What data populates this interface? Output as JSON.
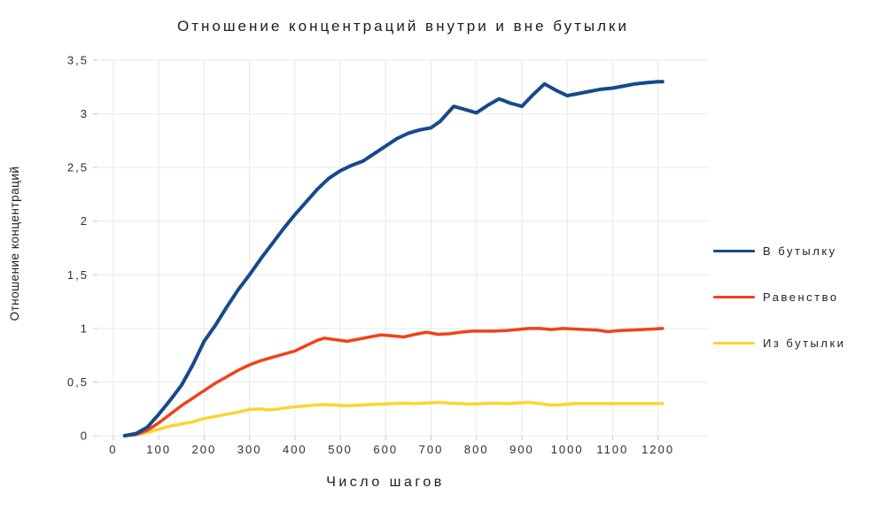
{
  "page": {
    "background": "#ffffff"
  },
  "chart_data": {
    "type": "line",
    "title": "Отношение концентраций внутри и вне бутылки",
    "xlabel": "Число шагов",
    "ylabel": "Отношение концентраций",
    "grid": true,
    "legend_position": "right",
    "xlim": [
      -35,
      1312
    ],
    "ylim": [
      0,
      3.5
    ],
    "x_ticks": {
      "values": [
        0,
        100,
        200,
        300,
        400,
        500,
        600,
        700,
        800,
        900,
        1000,
        1100,
        1200
      ],
      "labels": [
        "0",
        "100",
        "200",
        "300",
        "400",
        "500",
        "600",
        "700",
        "800",
        "900",
        "1000",
        "1100",
        "1200"
      ]
    },
    "y_ticks": {
      "values": [
        0,
        0.5,
        1,
        1.5,
        2,
        2.5,
        3,
        3.5
      ],
      "labels": [
        "0",
        "0,5",
        "1",
        "1,5",
        "2",
        "2,5",
        "3",
        "3,5"
      ]
    },
    "colors": {
      "grid": "#e9e9e9",
      "tick": "#c9c9c9",
      "tick_text": "#2e2e2e"
    },
    "series": [
      {
        "name": "В бутылку",
        "color": "#17498c",
        "width": 4,
        "points": [
          [
            25,
            0
          ],
          [
            50,
            0.02
          ],
          [
            75,
            0.08
          ],
          [
            100,
            0.2
          ],
          [
            125,
            0.33
          ],
          [
            150,
            0.47
          ],
          [
            175,
            0.66
          ],
          [
            200,
            0.88
          ],
          [
            225,
            1.03
          ],
          [
            250,
            1.2
          ],
          [
            275,
            1.36
          ],
          [
            300,
            1.5
          ],
          [
            325,
            1.65
          ],
          [
            350,
            1.79
          ],
          [
            375,
            1.93
          ],
          [
            400,
            2.06
          ],
          [
            425,
            2.18
          ],
          [
            450,
            2.3
          ],
          [
            475,
            2.4
          ],
          [
            500,
            2.47
          ],
          [
            525,
            2.52
          ],
          [
            550,
            2.56
          ],
          [
            575,
            2.63
          ],
          [
            600,
            2.7
          ],
          [
            625,
            2.77
          ],
          [
            650,
            2.82
          ],
          [
            675,
            2.85
          ],
          [
            700,
            2.87
          ],
          [
            720,
            2.93
          ],
          [
            750,
            3.07
          ],
          [
            775,
            3.04
          ],
          [
            800,
            3.01
          ],
          [
            825,
            3.08
          ],
          [
            850,
            3.14
          ],
          [
            875,
            3.1
          ],
          [
            900,
            3.07
          ],
          [
            925,
            3.18
          ],
          [
            950,
            3.28
          ],
          [
            975,
            3.22
          ],
          [
            1000,
            3.17
          ],
          [
            1025,
            3.19
          ],
          [
            1050,
            3.21
          ],
          [
            1075,
            3.23
          ],
          [
            1100,
            3.24
          ],
          [
            1125,
            3.26
          ],
          [
            1150,
            3.28
          ],
          [
            1175,
            3.29
          ],
          [
            1200,
            3.3
          ],
          [
            1210,
            3.3
          ]
        ]
      },
      {
        "name": "Равенство",
        "color": "#f0421a",
        "width": 3.5,
        "points": [
          [
            25,
            0
          ],
          [
            50,
            0.01
          ],
          [
            75,
            0.05
          ],
          [
            100,
            0.12
          ],
          [
            125,
            0.2
          ],
          [
            150,
            0.28
          ],
          [
            175,
            0.35
          ],
          [
            200,
            0.42
          ],
          [
            225,
            0.49
          ],
          [
            250,
            0.55
          ],
          [
            275,
            0.61
          ],
          [
            300,
            0.66
          ],
          [
            325,
            0.7
          ],
          [
            350,
            0.73
          ],
          [
            375,
            0.76
          ],
          [
            400,
            0.79
          ],
          [
            425,
            0.84
          ],
          [
            450,
            0.89
          ],
          [
            465,
            0.91
          ],
          [
            490,
            0.895
          ],
          [
            515,
            0.88
          ],
          [
            540,
            0.9
          ],
          [
            565,
            0.92
          ],
          [
            590,
            0.94
          ],
          [
            615,
            0.93
          ],
          [
            640,
            0.92
          ],
          [
            665,
            0.945
          ],
          [
            690,
            0.965
          ],
          [
            715,
            0.945
          ],
          [
            740,
            0.95
          ],
          [
            765,
            0.965
          ],
          [
            790,
            0.975
          ],
          [
            815,
            0.975
          ],
          [
            840,
            0.975
          ],
          [
            865,
            0.98
          ],
          [
            890,
            0.99
          ],
          [
            915,
            1.0
          ],
          [
            940,
            1.0
          ],
          [
            965,
            0.99
          ],
          [
            990,
            1.0
          ],
          [
            1015,
            0.995
          ],
          [
            1040,
            0.99
          ],
          [
            1065,
            0.985
          ],
          [
            1090,
            0.97
          ],
          [
            1115,
            0.98
          ],
          [
            1140,
            0.985
          ],
          [
            1165,
            0.99
          ],
          [
            1190,
            0.995
          ],
          [
            1210,
            1.0
          ]
        ]
      },
      {
        "name": "Из бутылки",
        "color": "#fed330",
        "width": 3.5,
        "points": [
          [
            25,
            0
          ],
          [
            50,
            0.01
          ],
          [
            75,
            0.03
          ],
          [
            100,
            0.06
          ],
          [
            125,
            0.09
          ],
          [
            150,
            0.11
          ],
          [
            175,
            0.13
          ],
          [
            200,
            0.16
          ],
          [
            225,
            0.18
          ],
          [
            250,
            0.2
          ],
          [
            275,
            0.22
          ],
          [
            300,
            0.245
          ],
          [
            325,
            0.25
          ],
          [
            340,
            0.24
          ],
          [
            365,
            0.25
          ],
          [
            390,
            0.265
          ],
          [
            415,
            0.275
          ],
          [
            440,
            0.285
          ],
          [
            465,
            0.29
          ],
          [
            490,
            0.285
          ],
          [
            515,
            0.28
          ],
          [
            540,
            0.285
          ],
          [
            565,
            0.29
          ],
          [
            590,
            0.295
          ],
          [
            615,
            0.3
          ],
          [
            640,
            0.305
          ],
          [
            665,
            0.3
          ],
          [
            690,
            0.305
          ],
          [
            715,
            0.31
          ],
          [
            740,
            0.305
          ],
          [
            765,
            0.3
          ],
          [
            790,
            0.295
          ],
          [
            815,
            0.3
          ],
          [
            840,
            0.305
          ],
          [
            865,
            0.3
          ],
          [
            890,
            0.305
          ],
          [
            915,
            0.31
          ],
          [
            940,
            0.3
          ],
          [
            965,
            0.285
          ],
          [
            990,
            0.29
          ],
          [
            1015,
            0.3
          ],
          [
            1040,
            0.3
          ],
          [
            1065,
            0.3
          ],
          [
            1090,
            0.3
          ],
          [
            1115,
            0.3
          ],
          [
            1140,
            0.3
          ],
          [
            1165,
            0.3
          ],
          [
            1190,
            0.3
          ],
          [
            1210,
            0.3
          ]
        ]
      }
    ]
  }
}
